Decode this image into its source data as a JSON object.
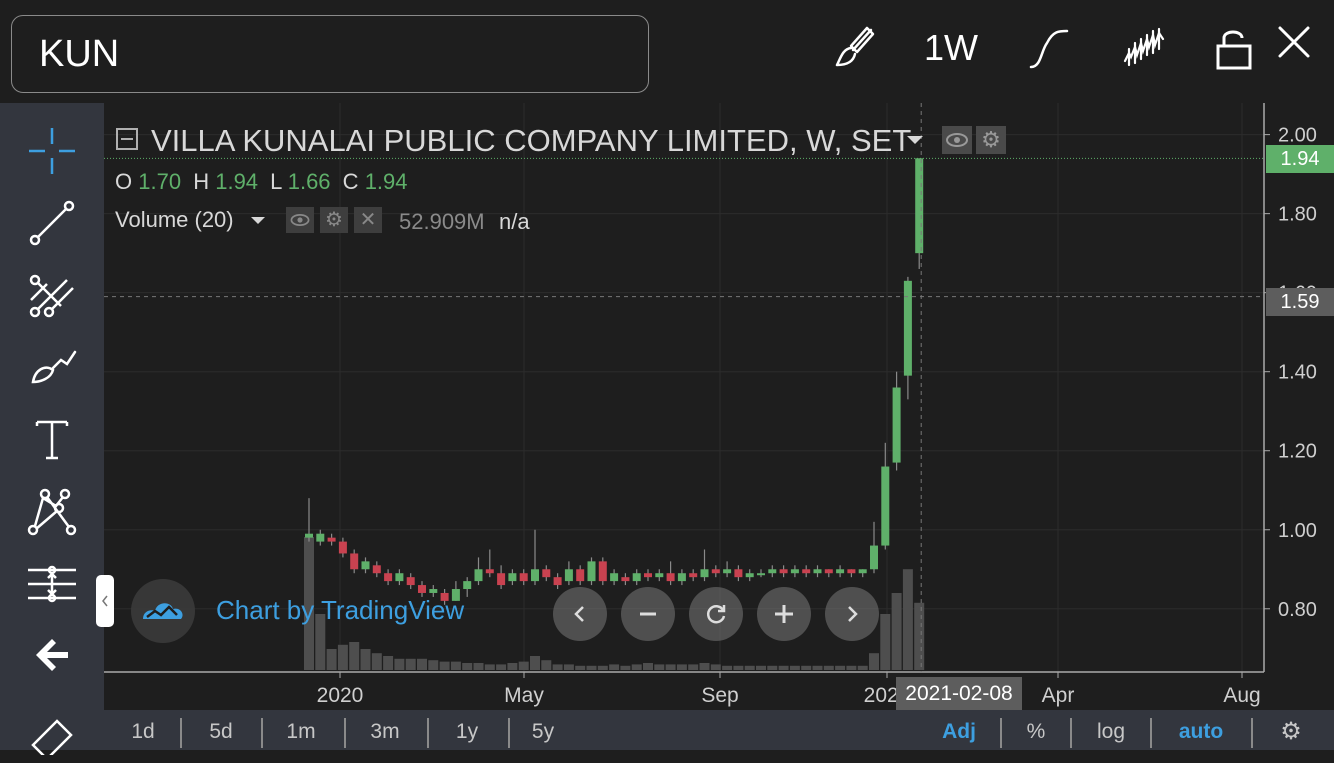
{
  "header": {
    "symbol": "KUN",
    "interval": "1W",
    "icons": [
      "brush-icon",
      "curve-icon",
      "candle-style-icon",
      "lock-icon",
      "close-icon"
    ]
  },
  "sidebar": {
    "tools": [
      "crosshair-icon",
      "trendline-icon",
      "fib-icon",
      "brush-icon",
      "text-icon",
      "pattern-icon",
      "measure-icon",
      "back-arrow-icon"
    ]
  },
  "legend": {
    "title": "VILLA KUNALAI PUBLIC COMPANY LIMITED, W, SET",
    "o_label": "O",
    "o_value": "1.70",
    "h_label": "H",
    "h_value": "1.94",
    "l_label": "L",
    "l_value": "1.66",
    "c_label": "C",
    "c_value": "1.94",
    "volume_label": "Volume (20)",
    "volume_value": "52.909M",
    "volume_extra": "n/a"
  },
  "watermark": "Chart by TradingView",
  "price_tags": {
    "last": "1.94",
    "crosshair": "1.59"
  },
  "crosshair_date": "2021-02-08",
  "timeframes": [
    "1d",
    "5d",
    "1m",
    "3m",
    "1y",
    "5y"
  ],
  "options": {
    "adj": "Adj",
    "percent": "%",
    "log": "log",
    "auto": "auto"
  },
  "colors": {
    "up": "#5fb06a",
    "down": "#c94250",
    "accent": "#3d9fe0",
    "background": "#1e1e1e",
    "toolbar": "#33363e"
  },
  "chart_data": {
    "type": "candlestick",
    "title": "VILLA KUNALAI PUBLIC COMPANY LIMITED, W, SET",
    "y_ticks": [
      "2.00",
      "1.80",
      "1.60",
      "1.40",
      "1.20",
      "1.00",
      "0.80"
    ],
    "ylim": [
      0.64,
      2.08
    ],
    "x_ticks": [
      "2020",
      "May",
      "Sep",
      "2021",
      "Apr",
      "Aug"
    ],
    "last_candle": {
      "date": "2021-02-08",
      "open": 1.7,
      "high": 1.94,
      "low": 1.66,
      "close": 1.94,
      "volume": "52.909M"
    },
    "candles": [
      [
        0.98,
        0.99,
        1.08,
        0.97
      ],
      [
        0.97,
        0.99,
        1.0,
        0.96
      ],
      [
        0.98,
        0.97,
        0.99,
        0.96
      ],
      [
        0.97,
        0.94,
        0.98,
        0.93
      ],
      [
        0.94,
        0.9,
        0.95,
        0.89
      ],
      [
        0.9,
        0.92,
        0.93,
        0.89
      ],
      [
        0.91,
        0.89,
        0.92,
        0.88
      ],
      [
        0.89,
        0.87,
        0.9,
        0.86
      ],
      [
        0.87,
        0.89,
        0.9,
        0.86
      ],
      [
        0.88,
        0.86,
        0.89,
        0.85
      ],
      [
        0.86,
        0.84,
        0.87,
        0.83
      ],
      [
        0.84,
        0.85,
        0.86,
        0.83
      ],
      [
        0.84,
        0.82,
        0.85,
        0.81
      ],
      [
        0.82,
        0.85,
        0.87,
        0.82
      ],
      [
        0.85,
        0.87,
        0.88,
        0.83
      ],
      [
        0.87,
        0.9,
        0.93,
        0.86
      ],
      [
        0.9,
        0.89,
        0.95,
        0.88
      ],
      [
        0.89,
        0.86,
        0.91,
        0.85
      ],
      [
        0.87,
        0.89,
        0.9,
        0.86
      ],
      [
        0.89,
        0.87,
        0.9,
        0.86
      ],
      [
        0.87,
        0.9,
        1.0,
        0.86
      ],
      [
        0.9,
        0.88,
        0.91,
        0.87
      ],
      [
        0.88,
        0.86,
        0.89,
        0.85
      ],
      [
        0.87,
        0.9,
        0.92,
        0.86
      ],
      [
        0.9,
        0.87,
        0.91,
        0.86
      ],
      [
        0.87,
        0.92,
        0.93,
        0.86
      ],
      [
        0.92,
        0.87,
        0.93,
        0.86
      ],
      [
        0.87,
        0.89,
        0.9,
        0.86
      ],
      [
        0.88,
        0.87,
        0.89,
        0.86
      ],
      [
        0.87,
        0.89,
        0.9,
        0.86
      ],
      [
        0.89,
        0.88,
        0.9,
        0.87
      ],
      [
        0.88,
        0.89,
        0.9,
        0.87
      ],
      [
        0.89,
        0.87,
        0.92,
        0.86
      ],
      [
        0.87,
        0.89,
        0.9,
        0.86
      ],
      [
        0.89,
        0.88,
        0.9,
        0.87
      ],
      [
        0.88,
        0.9,
        0.95,
        0.87
      ],
      [
        0.9,
        0.89,
        0.91,
        0.88
      ],
      [
        0.89,
        0.9,
        0.92,
        0.88
      ],
      [
        0.9,
        0.88,
        0.91,
        0.87
      ],
      [
        0.88,
        0.89,
        0.9,
        0.87
      ],
      [
        0.89,
        0.89,
        0.9,
        0.88
      ],
      [
        0.89,
        0.9,
        0.91,
        0.88
      ],
      [
        0.9,
        0.89,
        0.91,
        0.88
      ],
      [
        0.89,
        0.9,
        0.91,
        0.88
      ],
      [
        0.9,
        0.89,
        0.91,
        0.88
      ],
      [
        0.89,
        0.9,
        0.91,
        0.88
      ],
      [
        0.9,
        0.89,
        0.9,
        0.88
      ],
      [
        0.89,
        0.9,
        0.91,
        0.88
      ],
      [
        0.9,
        0.89,
        0.9,
        0.88
      ],
      [
        0.89,
        0.9,
        0.9,
        0.88
      ],
      [
        0.9,
        0.96,
        1.02,
        0.89
      ],
      [
        0.96,
        1.16,
        1.22,
        0.95
      ],
      [
        1.17,
        1.36,
        1.4,
        1.15
      ],
      [
        1.39,
        1.63,
        1.64,
        1.33
      ],
      [
        1.7,
        1.94,
        1.94,
        1.66
      ]
    ],
    "volumes_relative": [
      0.95,
      0.4,
      0.15,
      0.18,
      0.2,
      0.15,
      0.12,
      0.1,
      0.08,
      0.08,
      0.08,
      0.07,
      0.06,
      0.06,
      0.05,
      0.05,
      0.04,
      0.04,
      0.05,
      0.06,
      0.1,
      0.07,
      0.04,
      0.04,
      0.03,
      0.03,
      0.03,
      0.04,
      0.03,
      0.04,
      0.05,
      0.04,
      0.04,
      0.04,
      0.04,
      0.05,
      0.04,
      0.03,
      0.03,
      0.03,
      0.03,
      0.03,
      0.03,
      0.03,
      0.03,
      0.03,
      0.03,
      0.03,
      0.03,
      0.03,
      0.12,
      0.4,
      0.55,
      0.72,
      0.48
    ]
  }
}
